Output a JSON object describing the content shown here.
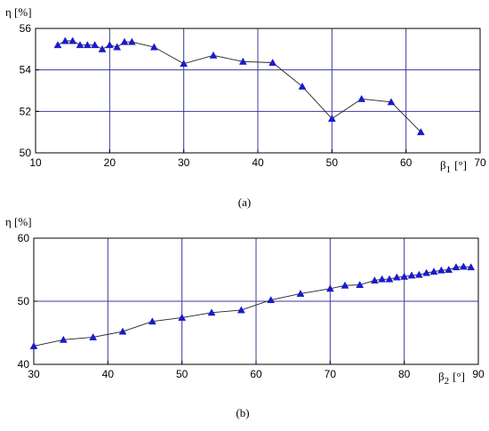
{
  "chart_data": [
    {
      "type": "line",
      "caption": "(a)",
      "ylabel": "η [%]",
      "xlabel_main": "β",
      "xlabel_sub": "1",
      "xlabel_unit": "[°]",
      "xlim": [
        10,
        70
      ],
      "ylim": [
        50,
        56
      ],
      "x_ticks": [
        "10",
        "20",
        "30",
        "40",
        "50",
        "60",
        "70"
      ],
      "y_ticks": [
        "50",
        "52",
        "54",
        "56"
      ],
      "grid": true,
      "marker": "triangle",
      "color": "#1a1acc",
      "x": [
        13,
        14,
        15,
        16,
        17,
        18,
        19,
        20,
        21,
        22,
        23,
        26,
        30,
        34,
        38,
        42,
        46,
        50,
        54,
        58,
        62
      ],
      "y": [
        55.2,
        55.4,
        55.4,
        55.2,
        55.2,
        55.2,
        55.0,
        55.2,
        55.1,
        55.35,
        55.35,
        55.1,
        54.3,
        54.7,
        54.4,
        54.35,
        53.2,
        51.65,
        52.6,
        52.45,
        51.0
      ]
    },
    {
      "type": "line",
      "caption": "(b)",
      "ylabel": "η [%]",
      "xlabel_main": "β",
      "xlabel_sub": "2",
      "xlabel_unit": "[°]",
      "xlim": [
        30,
        90
      ],
      "ylim": [
        40,
        60
      ],
      "x_ticks": [
        "30",
        "40",
        "50",
        "60",
        "70",
        "80",
        "90"
      ],
      "y_ticks": [
        "40",
        "50",
        "60"
      ],
      "grid": true,
      "marker": "triangle",
      "color": "#1a1acc",
      "x": [
        30,
        34,
        38,
        42,
        46,
        50,
        54,
        58,
        62,
        66,
        70,
        72,
        74,
        76,
        77,
        78,
        79,
        80,
        81,
        82,
        83,
        84,
        85,
        86,
        87,
        88,
        89
      ],
      "y": [
        42.9,
        43.9,
        44.3,
        45.2,
        46.8,
        47.4,
        48.2,
        48.6,
        50.2,
        51.2,
        52.0,
        52.5,
        52.6,
        53.3,
        53.5,
        53.5,
        53.8,
        53.9,
        54.1,
        54.2,
        54.5,
        54.7,
        54.9,
        55.0,
        55.4,
        55.5,
        55.4
      ]
    }
  ]
}
